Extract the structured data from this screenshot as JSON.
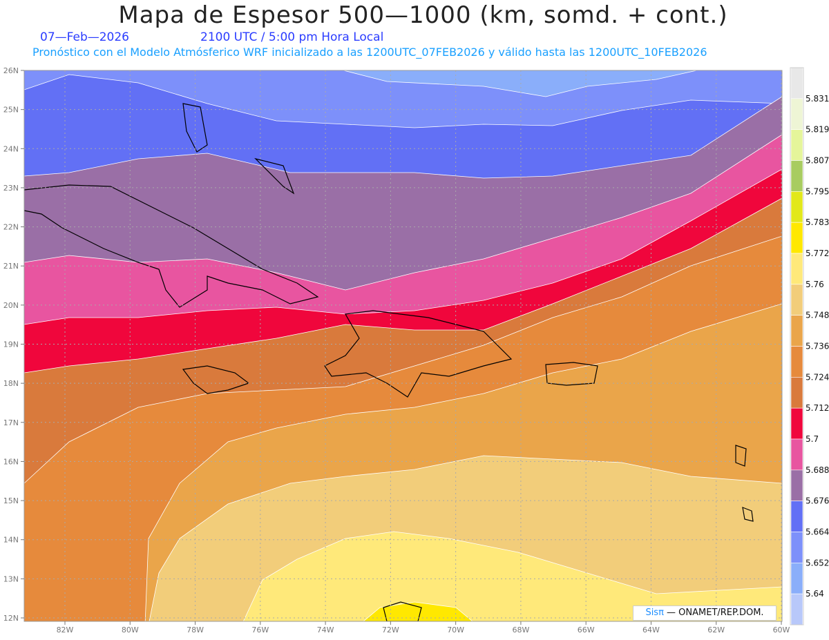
{
  "header": {
    "title": "Mapa de Espesor 500—1000 (km, somd. + cont.)",
    "date": "07—Feb—2026",
    "time": "2100 UTC / 5:00 pm Hora Local",
    "description": "Pronóstico con el Modelo Atmósferico WRF inicializado a las 1200UTC_07FEB2026 y válido hasta las  1200UTC_10FEB2026"
  },
  "axes": {
    "lon_labels": [
      "82W",
      "80W",
      "78W",
      "76W",
      "74W",
      "72W",
      "70W",
      "68W",
      "66W",
      "64W",
      "62W",
      "60W"
    ],
    "lat_labels": [
      "26N",
      "25N",
      "24N",
      "23N",
      "22N",
      "21N",
      "20N",
      "19N",
      "18N",
      "17N",
      "16N",
      "15N",
      "14N",
      "13N",
      "12N"
    ]
  },
  "colorbar": {
    "levels": [
      "5.831",
      "5.819",
      "5.807",
      "5.795",
      "5.783",
      "5.772",
      "5.76",
      "5.748",
      "5.736",
      "5.724",
      "5.712",
      "5.7",
      "5.688",
      "5.676",
      "5.664",
      "5.652",
      "5.64"
    ],
    "colors": [
      "#e8e8e8",
      "#eef5d5",
      "#e5f59a",
      "#a8cc60",
      "#e2e81a",
      "#ffe800",
      "#ffe97a",
      "#f2cd7a",
      "#eaa54a",
      "#e68a3c",
      "#d97a3c",
      "#f0063c",
      "#e855a0",
      "#9a6fa6",
      "#6270f5",
      "#7d90fa",
      "#8aaefa",
      "#b8c8fa"
    ]
  },
  "logo": {
    "brand": "Sisπ",
    "text": " — ONAMET/REP.DOM."
  }
}
